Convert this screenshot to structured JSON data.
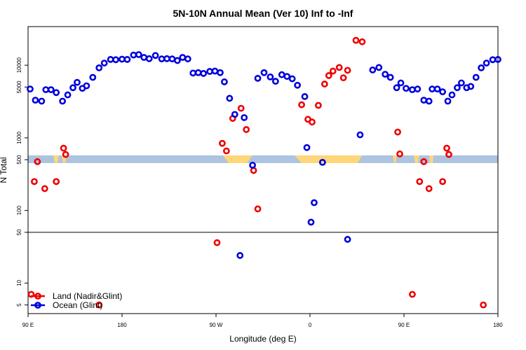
{
  "chart_data": {
    "type": "scatter",
    "title": "5N-10N Annual Mean (Ver 10)   Inf to -Inf",
    "xlabel": "Longitude (deg E)",
    "ylabel": "N Total",
    "x_ticks": [
      {
        "value": 90,
        "label": "90 E"
      },
      {
        "value": 180,
        "label": "180"
      },
      {
        "value": 270,
        "label": "90 W"
      },
      {
        "value": 360,
        "label": "0"
      },
      {
        "value": 450,
        "label": "90 E"
      },
      {
        "value": 540,
        "label": "180"
      }
    ],
    "xlim": [
      90,
      540
    ],
    "ylim": [
      3.8,
      34000
    ],
    "y_scale": "log",
    "y_ticks": [
      {
        "value": 5,
        "label": "5"
      },
      {
        "value": 10,
        "label": "10"
      },
      {
        "value": 50,
        "label": "50"
      },
      {
        "value": 100,
        "label": "100"
      },
      {
        "value": 500,
        "label": "500"
      },
      {
        "value": 1000,
        "label": "1000"
      },
      {
        "value": 5000,
        "label": "5000"
      },
      {
        "value": 10000,
        "label": "10000"
      }
    ],
    "reference_line": 50,
    "legend_position": "bottom-left",
    "series": [
      {
        "name": "Land (Nadir&Glint)",
        "color": "#ee0000",
        "points": [
          [
            93,
            7
          ],
          [
            96,
            250
          ],
          [
            99,
            470
          ],
          [
            106,
            200
          ],
          [
            117,
            250
          ],
          [
            124,
            720
          ],
          [
            126,
            590
          ],
          [
            158,
            5
          ],
          [
            271,
            36
          ],
          [
            276,
            840
          ],
          [
            280,
            660
          ],
          [
            286,
            1850
          ],
          [
            294,
            2550
          ],
          [
            299,
            1300
          ],
          [
            306,
            355
          ],
          [
            310,
            105
          ],
          [
            352,
            2850
          ],
          [
            358,
            1800
          ],
          [
            362,
            1650
          ],
          [
            368,
            2800
          ],
          [
            374,
            5500
          ],
          [
            378,
            7200
          ],
          [
            382,
            8300
          ],
          [
            388,
            9300
          ],
          [
            392,
            6700
          ],
          [
            396,
            8500
          ],
          [
            404,
            22000
          ],
          [
            410,
            21000
          ],
          [
            444,
            1200
          ],
          [
            446,
            600
          ],
          [
            458,
            7
          ],
          [
            465,
            250
          ],
          [
            469,
            470
          ],
          [
            474,
            200
          ],
          [
            487,
            250
          ],
          [
            491,
            720
          ],
          [
            493,
            590
          ],
          [
            526,
            5
          ]
        ]
      },
      {
        "name": "Ocean (Glint)",
        "color": "#0000dd",
        "points": [
          [
            92,
            4700
          ],
          [
            97,
            3300
          ],
          [
            103,
            3200
          ],
          [
            107,
            4600
          ],
          [
            112,
            4600
          ],
          [
            117,
            4200
          ],
          [
            123,
            3200
          ],
          [
            128,
            3900
          ],
          [
            133,
            4900
          ],
          [
            137,
            5800
          ],
          [
            142,
            4800
          ],
          [
            146,
            5200
          ],
          [
            152,
            6800
          ],
          [
            158,
            9200
          ],
          [
            163,
            10700
          ],
          [
            169,
            12000
          ],
          [
            174,
            11900
          ],
          [
            180,
            12100
          ],
          [
            185,
            12000
          ],
          [
            191,
            13800
          ],
          [
            196,
            14000
          ],
          [
            201,
            12800
          ],
          [
            206,
            12300
          ],
          [
            212,
            13600
          ],
          [
            218,
            12200
          ],
          [
            223,
            12300
          ],
          [
            228,
            12200
          ],
          [
            233,
            11600
          ],
          [
            238,
            12800
          ],
          [
            243,
            12200
          ],
          [
            248,
            7800
          ],
          [
            253,
            7900
          ],
          [
            258,
            7700
          ],
          [
            264,
            8200
          ],
          [
            269,
            8300
          ],
          [
            274,
            7900
          ],
          [
            278,
            5900
          ],
          [
            283,
            3500
          ],
          [
            288,
            2100
          ],
          [
            293,
            24
          ],
          [
            297,
            1900
          ],
          [
            305,
            420
          ],
          [
            310,
            6600
          ],
          [
            316,
            7900
          ],
          [
            322,
            6900
          ],
          [
            327,
            6000
          ],
          [
            333,
            7400
          ],
          [
            338,
            7000
          ],
          [
            343,
            6500
          ],
          [
            348,
            5300
          ],
          [
            355,
            3700
          ],
          [
            357,
            735
          ],
          [
            361,
            69
          ],
          [
            364,
            128
          ],
          [
            372,
            460
          ],
          [
            408,
            1100
          ],
          [
            420,
            8600
          ],
          [
            426,
            9300
          ],
          [
            432,
            7500
          ],
          [
            437,
            6800
          ],
          [
            443,
            4900
          ],
          [
            447,
            5700
          ],
          [
            452,
            4800
          ],
          [
            458,
            4600
          ],
          [
            463,
            4700
          ],
          [
            469,
            3300
          ],
          [
            474,
            3200
          ],
          [
            477,
            4700
          ],
          [
            482,
            4700
          ],
          [
            487,
            4300
          ],
          [
            492,
            3200
          ],
          [
            496,
            3900
          ],
          [
            501,
            4900
          ],
          [
            505,
            5700
          ],
          [
            510,
            4900
          ],
          [
            514,
            5100
          ],
          [
            519,
            6800
          ],
          [
            524,
            9200
          ],
          [
            529,
            10700
          ],
          [
            535,
            11900
          ],
          [
            540,
            12000
          ],
          [
            396,
            40
          ]
        ]
      }
    ]
  }
}
